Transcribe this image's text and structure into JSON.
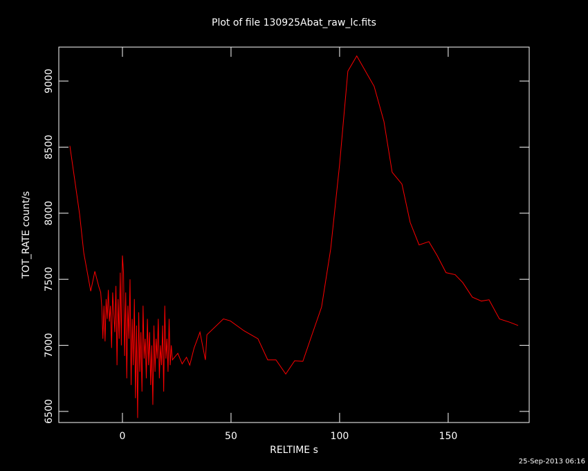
{
  "chart_data": {
    "type": "line",
    "title": "Plot of file 130925Abat_raw_lc.fits",
    "xlabel": "RELTIME  s",
    "ylabel": "TOT_RATE  count/s",
    "footer": "25-Sep-2013 06:16",
    "xlim": [
      -29.3,
      187.3
    ],
    "ylim": [
      6416,
      9257
    ],
    "xticks": [
      0,
      50,
      100,
      150
    ],
    "yticks": [
      6500,
      7000,
      7500,
      8000,
      8500,
      9000
    ],
    "series": [
      {
        "name": "TOT_RATE",
        "color": "#ff0000",
        "x": [
          -24.2,
          -19.7,
          -17.8,
          -14.6,
          -12.7,
          -10.8,
          -10,
          -9.5,
          -9,
          -8.5,
          -8,
          -7.5,
          -7,
          -6.5,
          -6,
          -5.5,
          -5,
          -4.5,
          -4,
          -3.5,
          -3,
          -2.5,
          -2,
          -1.5,
          -1,
          -0.5,
          0,
          0.5,
          1,
          1.5,
          2,
          2.5,
          3,
          3.5,
          4,
          4.5,
          5,
          5.5,
          6,
          6.5,
          7,
          7.5,
          8,
          8.5,
          9,
          9.5,
          10,
          10.5,
          11,
          11.5,
          12,
          12.5,
          13,
          13.5,
          14,
          14.5,
          15,
          15.5,
          16,
          16.5,
          17,
          17.5,
          18,
          18.5,
          19,
          19.5,
          20,
          20.5,
          21,
          21.5,
          22,
          22.5,
          23,
          25.5,
          27.5,
          29.5,
          31,
          33,
          35.7,
          38.2,
          38.9,
          46.5,
          49.7,
          56,
          62.4,
          66.9,
          70.7,
          75.2,
          79.3,
          83.1,
          87.9,
          91.7,
          95.9,
          100,
          103.8,
          107.9,
          115.9,
          120.4,
          124.2,
          128.7,
          132.5,
          136.6,
          141.1,
          144.9,
          149,
          153.2,
          156.7,
          161.1,
          165.3,
          168.8,
          173.6,
          178.3,
          182.2
        ],
        "values": [
          8510,
          7990,
          7700,
          7410,
          7560,
          7440,
          7400,
          7290,
          7050,
          7300,
          7030,
          7350,
          7200,
          7420,
          7180,
          7300,
          6980,
          7400,
          7250,
          7100,
          7450,
          6850,
          7350,
          7050,
          7550,
          7000,
          7680,
          7550,
          6920,
          7400,
          6750,
          7300,
          7050,
          7500,
          6700,
          7200,
          6850,
          7350,
          6600,
          7150,
          6450,
          7250,
          6800,
          7100,
          6650,
          7300,
          6900,
          7050,
          6750,
          7200,
          6850,
          7100,
          6700,
          7000,
          6550,
          7150,
          6800,
          7050,
          6900,
          7200,
          6750,
          7000,
          6850,
          7150,
          6650,
          7300,
          6900,
          7050,
          6800,
          7200,
          6850,
          7000,
          6890,
          6940,
          6860,
          6910,
          6850,
          6980,
          7100,
          6890,
          7080,
          7200,
          7185,
          7110,
          7050,
          6890,
          6890,
          6783,
          6883,
          6880,
          7110,
          7290,
          7730,
          8370,
          9075,
          9190,
          8960,
          8695,
          8310,
          8220,
          7930,
          7760,
          7785,
          7680,
          7550,
          7535,
          7475,
          7365,
          7335,
          7345,
          7200,
          7175,
          7150
        ]
      }
    ]
  }
}
